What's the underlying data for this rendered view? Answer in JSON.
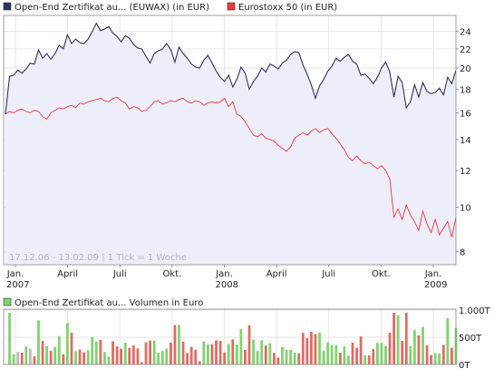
{
  "colors": {
    "series_a": "#2f3259",
    "series_b": "#e8383e",
    "area_fill": "#eeeefb",
    "grid": "#dcdcdc",
    "vol_up": "#7fd36f",
    "vol_down": "#e06b62",
    "vol_neutral": "#b8b8b8"
  },
  "chart_data": [
    {
      "type": "line",
      "legend_position": "top",
      "series": [
        {
          "name": "Open-End Zertifikat au... (EUWAX) (in EUR)",
          "color": "#2f3259",
          "filled": true,
          "x": [
            0,
            1,
            2,
            3,
            4,
            5,
            6,
            7,
            8,
            9,
            10,
            11,
            12,
            13,
            14,
            15,
            16,
            17,
            18,
            19,
            20,
            21,
            22,
            23,
            24,
            25,
            26,
            27,
            28,
            29,
            30,
            31,
            32,
            33,
            34,
            35,
            36,
            37,
            38,
            39,
            40,
            41,
            42,
            43,
            44,
            45,
            46,
            47,
            48,
            49,
            50,
            51,
            52,
            53,
            54,
            55,
            56,
            57,
            58,
            59,
            60,
            61,
            62,
            63,
            64,
            65,
            66,
            67,
            68,
            69,
            70,
            71,
            72,
            73,
            74,
            75,
            76,
            77,
            78,
            79,
            80,
            81,
            82,
            83,
            84,
            85,
            86,
            87,
            88,
            89,
            90,
            91,
            92,
            93,
            94,
            95,
            96,
            97,
            98,
            99,
            100,
            101,
            102,
            103,
            104,
            105,
            106,
            107,
            108,
            109
          ],
          "values": [
            15.9,
            19.2,
            19.3,
            19.8,
            19.5,
            19.9,
            20.5,
            20.4,
            21.9,
            21.0,
            21.5,
            20.9,
            21.5,
            22.4,
            22.0,
            23.6,
            22.6,
            23.1,
            22.7,
            22.6,
            23.1,
            24.0,
            25.0,
            24.1,
            24.3,
            24.6,
            23.8,
            23.4,
            22.8,
            23.5,
            23.2,
            22.5,
            22.1,
            22.0,
            21.2,
            20.5,
            21.5,
            21.8,
            22.0,
            22.6,
            21.9,
            20.6,
            22.2,
            21.5,
            21.0,
            20.4,
            20.1,
            20.0,
            20.8,
            21.3,
            20.5,
            19.7,
            19.1,
            18.7,
            19.3,
            18.2,
            18.9,
            20.1,
            19.5,
            18.0,
            18.7,
            19.2,
            20.0,
            19.6,
            20.4,
            20.2,
            19.9,
            20.5,
            20.8,
            21.4,
            21.7,
            21.6,
            20.3,
            19.4,
            18.4,
            17.2,
            18.3,
            18.9,
            19.7,
            20.2,
            21.0,
            20.7,
            21.1,
            21.4,
            20.7,
            20.4,
            19.3,
            19.4,
            19.0,
            18.5,
            19.1,
            20.0,
            20.6,
            19.6,
            17.3,
            19.2,
            18.6,
            16.4,
            16.9,
            18.4,
            17.3,
            18.6,
            17.8,
            17.6,
            17.7,
            18.1,
            17.5,
            19.1,
            18.5,
            19.8
          ],
          "note_values_tail": [
            20.5,
            21.2
          ]
        },
        {
          "name": "Eurostoxx 50 (in EUR)",
          "color": "#e8383e",
          "filled": false,
          "values_pct_of_first": true,
          "x": [
            0,
            1,
            2,
            3,
            4,
            5,
            6,
            7,
            8,
            9,
            10,
            11,
            12,
            13,
            14,
            15,
            16,
            17,
            18,
            19,
            20,
            21,
            22,
            23,
            24,
            25,
            26,
            27,
            28,
            29,
            30,
            31,
            32,
            33,
            34,
            35,
            36,
            37,
            38,
            39,
            40,
            41,
            42,
            43,
            44,
            45,
            46,
            47,
            48,
            49,
            50,
            51,
            52,
            53,
            54,
            55,
            56,
            57,
            58,
            59,
            60,
            61,
            62,
            63,
            64,
            65,
            66,
            67,
            68,
            69,
            70,
            71,
            72,
            73,
            74,
            75,
            76,
            77,
            78,
            79,
            80,
            81,
            82,
            83,
            84,
            85,
            86,
            87,
            88,
            89,
            90,
            91,
            92,
            93,
            94,
            95,
            96,
            97,
            98,
            99,
            100,
            101,
            102,
            103,
            104,
            105,
            106,
            107,
            108,
            109
          ],
          "values": [
            15.9,
            16.1,
            16.0,
            16.2,
            16.3,
            16.1,
            16.0,
            16.2,
            16.1,
            15.7,
            15.5,
            16.0,
            16.2,
            16.4,
            16.3,
            16.5,
            16.6,
            16.4,
            16.8,
            16.7,
            16.9,
            17.0,
            17.1,
            17.2,
            17.0,
            16.9,
            17.2,
            17.3,
            17.0,
            16.8,
            16.3,
            16.5,
            16.4,
            16.1,
            16.2,
            16.5,
            16.9,
            17.0,
            16.7,
            16.8,
            17.0,
            16.9,
            17.1,
            17.2,
            16.9,
            16.8,
            17.0,
            16.9,
            16.6,
            16.8,
            16.9,
            16.8,
            16.9,
            17.2,
            16.5,
            16.9,
            15.9,
            15.7,
            15.3,
            14.8,
            14.3,
            14.2,
            14.4,
            14.1,
            14.0,
            13.9,
            13.6,
            13.4,
            13.2,
            13.5,
            14.1,
            14.3,
            14.5,
            14.3,
            14.6,
            14.8,
            14.5,
            14.7,
            14.8,
            14.4,
            14.1,
            13.7,
            13.3,
            12.8,
            12.6,
            12.9,
            12.6,
            12.4,
            12.5,
            12.3,
            12.1,
            12.3,
            12.0,
            11.5,
            9.5,
            9.9,
            9.4,
            10.1,
            9.6,
            9.3,
            8.9,
            9.8,
            9.2,
            8.8,
            9.4,
            8.7,
            9.0,
            9.3,
            8.6,
            9.5
          ],
          "note_values_tail": [
            9.2,
            9.8,
            9.6,
            8.9,
            8.6,
            8.8,
            8.5,
            9.1,
            9.3,
            8.9,
            8.6
          ]
        }
      ],
      "yaxis": {
        "position": "right",
        "ticks": [
          "24",
          "22",
          "20",
          "18",
          "16",
          "14",
          "12",
          "10",
          "8"
        ],
        "tick_values": [
          24,
          22,
          20,
          18,
          16,
          14,
          12,
          10,
          8
        ],
        "scale": "log",
        "ylim": [
          7.5,
          26
        ]
      },
      "xaxis": {
        "labels": [
          {
            "text": "Jan.",
            "sub": "2007",
            "pos": 0.0
          },
          {
            "text": "April",
            "sub": "",
            "pos": 0.125
          },
          {
            "text": "Juli",
            "sub": "",
            "pos": 0.25
          },
          {
            "text": "Okt.",
            "sub": "",
            "pos": 0.375
          },
          {
            "text": "Jan.",
            "sub": "2008",
            "pos": 0.5
          },
          {
            "text": "April",
            "sub": "",
            "pos": 0.625
          },
          {
            "text": "Juli",
            "sub": "",
            "pos": 0.75
          },
          {
            "text": "Okt.",
            "sub": "",
            "pos": 0.875
          },
          {
            "text": "Jan.",
            "sub": "2009",
            "pos": 1.0
          }
        ]
      },
      "grid": true,
      "watermark": "17.12.06 - 13.02.09  |  1 Tick = 1 Woche"
    },
    {
      "type": "bar",
      "legend": "Open-End Zertifikat au... Volumen in Euro",
      "yaxis": {
        "position": "right",
        "ticks": [
          "1.000T",
          "500T",
          "0T"
        ],
        "tick_values": [
          1000,
          500,
          0
        ],
        "ylim": [
          0,
          1000
        ]
      },
      "grid": true
    }
  ]
}
